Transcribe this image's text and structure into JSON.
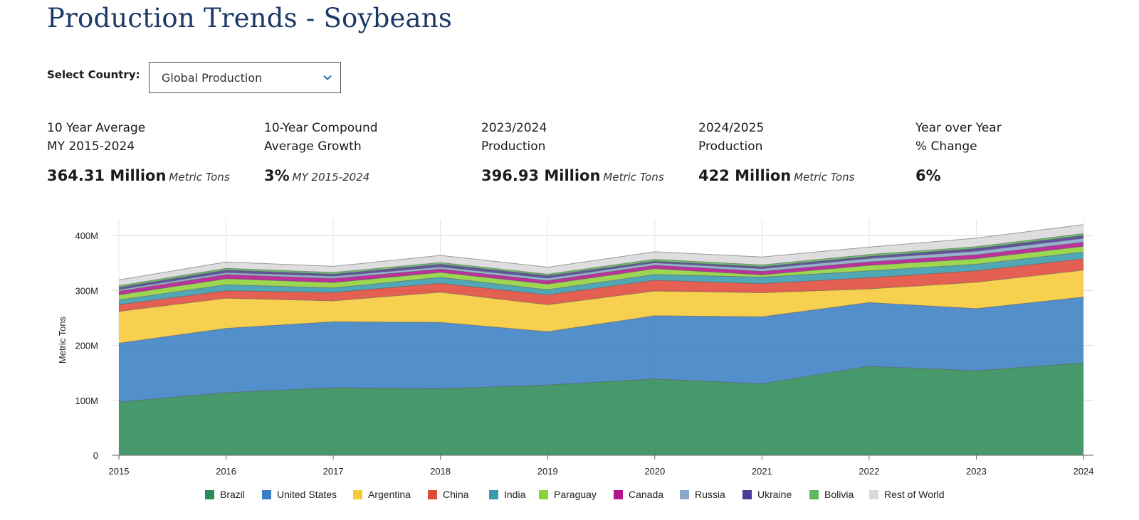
{
  "page": {
    "title": "Production Trends - Soybeans"
  },
  "selector": {
    "label": "Select Country:",
    "value": "Global Production"
  },
  "stats": [
    {
      "label_line1": "10 Year Average",
      "label_line2": "MY 2015-2024",
      "value": "364.31 Million",
      "unit": "Metric Tons"
    },
    {
      "label_line1": "10-Year Compound",
      "label_line2": "Average Growth",
      "value": "3%",
      "unit": "MY 2015-2024"
    },
    {
      "label_line1": "2023/2024",
      "label_line2": "Production",
      "value": "396.93 Million",
      "unit": "Metric Tons"
    },
    {
      "label_line1": "2024/2025",
      "label_line2": "Production",
      "value": "422 Million",
      "unit": "Metric Tons"
    },
    {
      "label_line1": "Year over Year",
      "label_line2": "% Change",
      "value": "6%",
      "unit": ""
    }
  ],
  "chart_data": {
    "type": "area",
    "stacked": true,
    "x": [
      2015,
      2016,
      2017,
      2018,
      2019,
      2020,
      2021,
      2022,
      2023,
      2024
    ],
    "ylabel": "Metric Tons",
    "ylim": [
      0,
      430
    ],
    "yticks": [
      0,
      100,
      200,
      300,
      400
    ],
    "ytick_labels": [
      "0",
      "100M",
      "200M",
      "300M",
      "400M"
    ],
    "grid": true,
    "legend_position": "bottom",
    "series": [
      {
        "name": "Brazil",
        "color": "#2e8b57",
        "values": [
          97,
          114,
          123,
          121,
          128,
          139,
          130,
          162,
          154,
          168
        ]
      },
      {
        "name": "United States",
        "color": "#3b7fc4",
        "values": [
          107,
          117,
          120,
          121,
          97,
          115,
          122,
          116,
          113,
          120
        ]
      },
      {
        "name": "Argentina",
        "color": "#f7c937",
        "values": [
          58,
          55,
          38,
          55,
          49,
          45,
          44,
          25,
          48,
          49
        ]
      },
      {
        "name": "China",
        "color": "#e04a3b",
        "values": [
          12.2,
          13.6,
          15.3,
          16.0,
          18.1,
          19.6,
          16.4,
          20.3,
          20.8,
          20.7
        ]
      },
      {
        "name": "India",
        "color": "#3a9bac",
        "values": [
          8.6,
          11.0,
          8.3,
          10.9,
          9.3,
          10.5,
          11.9,
          12.4,
          11.9,
          12.3
        ]
      },
      {
        "name": "Paraguay",
        "color": "#8fd13a",
        "values": [
          9.2,
          10.7,
          9.9,
          8.9,
          10.2,
          10.5,
          4.2,
          10.0,
          10.2,
          10.3
        ]
      },
      {
        "name": "Canada",
        "color": "#b3148f",
        "values": [
          6.5,
          7.7,
          7.4,
          6.1,
          6.4,
          6.4,
          6.3,
          6.5,
          7.0,
          7.6
        ]
      },
      {
        "name": "Russia",
        "color": "#8aa8c9",
        "values": [
          3.1,
          3.6,
          4.0,
          4.0,
          4.4,
          4.3,
          4.8,
          6.0,
          6.6,
          7.0
        ]
      },
      {
        "name": "Ukraine",
        "color": "#4b3b94",
        "values": [
          3.9,
          4.5,
          3.9,
          4.8,
          4.5,
          3.0,
          3.6,
          3.8,
          5.0,
          5.2
        ]
      },
      {
        "name": "Bolivia",
        "color": "#5bb85b",
        "values": [
          3.2,
          3.3,
          3.0,
          3.2,
          2.8,
          3.5,
          3.3,
          3.5,
          3.2,
          3.5
        ]
      },
      {
        "name": "Rest of World",
        "color": "#d9d9d9",
        "values": [
          10.5,
          11.5,
          11.2,
          13.0,
          12.8,
          13.8,
          14.6,
          13.5,
          15.7,
          16.4
        ]
      }
    ]
  }
}
